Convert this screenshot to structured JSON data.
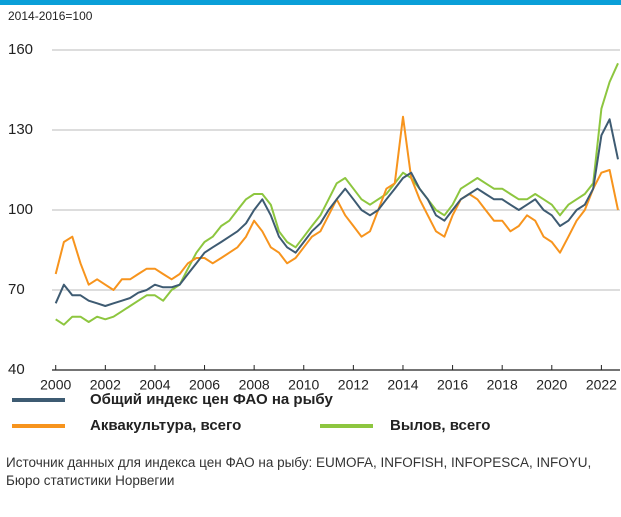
{
  "chart_data": {
    "type": "line",
    "subtitle": "2014-2016=100",
    "x": [
      2000,
      2000.33,
      2000.67,
      2001,
      2001.33,
      2001.67,
      2002,
      2002.33,
      2002.67,
      2003,
      2003.33,
      2003.67,
      2004,
      2004.33,
      2004.67,
      2005,
      2005.33,
      2005.67,
      2006,
      2006.33,
      2006.67,
      2007,
      2007.33,
      2007.67,
      2008,
      2008.33,
      2008.67,
      2009,
      2009.33,
      2009.67,
      2010,
      2010.33,
      2010.67,
      2011,
      2011.33,
      2011.67,
      2012,
      2012.33,
      2012.67,
      2013,
      2013.33,
      2013.67,
      2014,
      2014.33,
      2014.67,
      2015,
      2015.33,
      2015.67,
      2016,
      2016.33,
      2016.67,
      2017,
      2017.33,
      2017.67,
      2018,
      2018.33,
      2018.67,
      2019,
      2019.33,
      2019.67,
      2020,
      2020.33,
      2020.67,
      2021,
      2021.33,
      2021.67,
      2022,
      2022.33,
      2022.67
    ],
    "series": [
      {
        "name": "Общий индекс цен ФАО на рыбу",
        "color": "#3e5b72",
        "values": [
          65,
          72,
          68,
          68,
          66,
          65,
          64,
          65,
          66,
          67,
          69,
          70,
          72,
          71,
          71,
          72,
          76,
          80,
          84,
          86,
          88,
          90,
          92,
          95,
          100,
          104,
          98,
          90,
          86,
          84,
          88,
          92,
          95,
          100,
          104,
          108,
          104,
          100,
          98,
          100,
          104,
          108,
          112,
          114,
          108,
          104,
          98,
          96,
          100,
          104,
          106,
          108,
          106,
          104,
          104,
          102,
          100,
          102,
          104,
          100,
          98,
          94,
          96,
          100,
          102,
          108,
          128,
          134,
          119
        ]
      },
      {
        "name": "Аквакультура, всего",
        "color": "#f7941d",
        "values": [
          76,
          88,
          90,
          80,
          72,
          74,
          72,
          70,
          74,
          74,
          76,
          78,
          78,
          76,
          74,
          76,
          80,
          82,
          82,
          80,
          82,
          84,
          86,
          90,
          96,
          92,
          86,
          84,
          80,
          82,
          86,
          90,
          92,
          98,
          104,
          98,
          94,
          90,
          92,
          100,
          108,
          110,
          135,
          112,
          104,
          98,
          92,
          90,
          98,
          104,
          106,
          104,
          100,
          96,
          96,
          92,
          94,
          98,
          96,
          90,
          88,
          84,
          90,
          96,
          100,
          108,
          114,
          115,
          100
        ]
      },
      {
        "name": "Вылов, всего",
        "color": "#8dc63f",
        "values": [
          59,
          57,
          60,
          60,
          58,
          60,
          59,
          60,
          62,
          64,
          66,
          68,
          68,
          66,
          70,
          72,
          78,
          84,
          88,
          90,
          94,
          96,
          100,
          104,
          106,
          106,
          102,
          92,
          88,
          86,
          90,
          94,
          98,
          104,
          110,
          112,
          108,
          104,
          102,
          104,
          106,
          110,
          114,
          112,
          108,
          104,
          100,
          98,
          102,
          108,
          110,
          112,
          110,
          108,
          108,
          106,
          104,
          104,
          106,
          104,
          102,
          98,
          102,
          104,
          106,
          110,
          138,
          148,
          155
        ]
      }
    ],
    "xlim": [
      1999.85,
      2022.75
    ],
    "xticks": [
      2000,
      2002,
      2004,
      2006,
      2008,
      2010,
      2012,
      2014,
      2016,
      2018,
      2020,
      2022
    ],
    "ylim": [
      40,
      160
    ],
    "yticks": [
      40,
      70,
      100,
      130,
      160
    ],
    "grid": true,
    "source": "Источник данных для индекса цен ФАО на рыбу: EUMOFA, INFOFISH, INFOPESCA, INFOYU, Бюро статистики Норвегии"
  }
}
